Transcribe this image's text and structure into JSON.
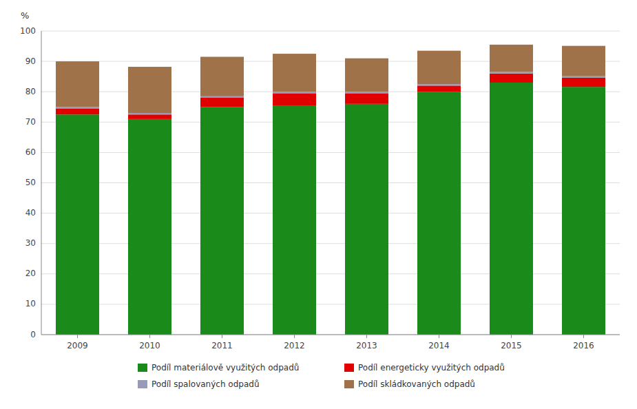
{
  "chart_data": {
    "type": "bar",
    "stacked": true,
    "ylabel": "%",
    "categories": [
      "2009",
      "2010",
      "2011",
      "2012",
      "2013",
      "2014",
      "2015",
      "2016"
    ],
    "series": [
      {
        "name": "Podíl materiálově využitých odpadů",
        "color": "#1a8a1a",
        "values": [
          72.5,
          71.0,
          75.0,
          75.5,
          76.0,
          80.0,
          83.0,
          81.6
        ]
      },
      {
        "name": "Podíl energeticky využitých odpadů",
        "color": "#e00000",
        "values": [
          2.0,
          1.5,
          3.0,
          4.0,
          3.5,
          2.0,
          3.0,
          3.0
        ]
      },
      {
        "name": "Podíl spalovaných odpadů",
        "color": "#9999bb",
        "values": [
          0.5,
          0.5,
          0.5,
          0.5,
          0.5,
          0.5,
          0.5,
          0.5
        ]
      },
      {
        "name": "Podíl skládkovaných odpadů",
        "color": "#a0724a",
        "values": [
          15.0,
          15.2,
          13.0,
          12.5,
          11.0,
          11.0,
          9.0,
          10.0
        ]
      }
    ],
    "ylim": [
      0,
      100
    ],
    "yticks": [
      0,
      10,
      20,
      30,
      40,
      50,
      60,
      70,
      80,
      90,
      100
    ],
    "grid": true,
    "legend": "bottom"
  }
}
